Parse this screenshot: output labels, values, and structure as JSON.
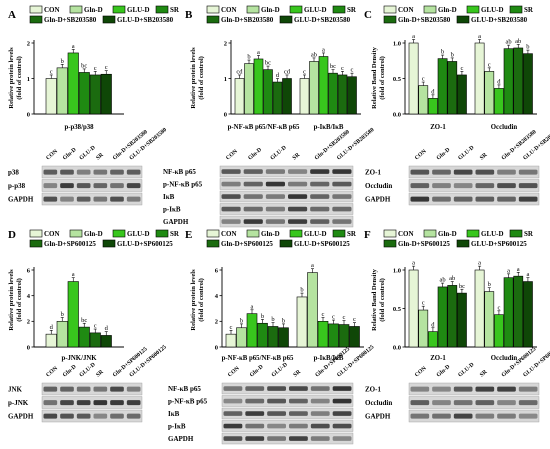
{
  "colors": {
    "CON": "#e6f5d6",
    "Gln-D": "#b5e3a0",
    "GLU-D": "#38c61d",
    "SR": "#1f8a12",
    "Gln-D+SR": "#1b6b0f",
    "GLU-D+SR": "#0f4707",
    "blot_bg": "#d7d7d7",
    "band": "#2a2a2a"
  },
  "chart_data": [
    {
      "panel": "A",
      "type": "bar",
      "legend": [
        "CON",
        "Gln-D",
        "GLU-D",
        "SR",
        "Gln-D+SB203580",
        "GLU-D+SB203580"
      ],
      "ylabel": "Relative protein levels (fold of control)",
      "ylim": [
        0,
        2
      ],
      "yticks": [
        "0",
        "1",
        "2"
      ],
      "categories": [
        "p-p38/p38"
      ],
      "groups": [
        {
          "values": [
            1.0,
            1.3,
            1.72,
            1.17,
            1.1,
            1.12
          ],
          "letters": [
            "c",
            "b",
            "a",
            "bc",
            "c",
            "c"
          ]
        }
      ],
      "blot_lanes": [
        "CON",
        "Gln-D",
        "GLU-D",
        "SR",
        "Gln-D+SB203580",
        "GLU-D+SB203580"
      ],
      "blot_rows": [
        "p38",
        "p-p38",
        "GAPDH"
      ]
    },
    {
      "panel": "B",
      "type": "bar",
      "legend": [
        "CON",
        "Gln-D",
        "GLU-D",
        "SR",
        "Gln-D+SB203580",
        "GLU-D+SB203580"
      ],
      "ylabel": "Relative protein levels (fold of control)",
      "ylim": [
        0,
        2
      ],
      "yticks": [
        "0",
        "1",
        "2"
      ],
      "categories": [
        "p-NF-κB p65/NF-κB p65",
        "p-IκB/IκB"
      ],
      "groups": [
        {
          "values": [
            1.0,
            1.42,
            1.55,
            1.25,
            0.9,
            1.0
          ],
          "letters": [
            "cd",
            "b",
            "a",
            "bc",
            "d",
            "cd"
          ]
        },
        {
          "values": [
            1.0,
            1.48,
            1.62,
            1.15,
            1.1,
            1.05
          ],
          "letters": [
            "c",
            "ab",
            "a",
            "bc",
            "c",
            "c"
          ]
        }
      ],
      "blot_lanes": [
        "CON",
        "Gln-D",
        "GLU-D",
        "SR",
        "Gln-D+SB203580",
        "GLU-D+SB203580"
      ],
      "blot_rows": [
        "NF-κB p65",
        "p-NF-κB p65",
        "IκB",
        "p-IκB",
        "GAPDH"
      ]
    },
    {
      "panel": "C",
      "type": "bar",
      "legend": [
        "CON",
        "Gln-D",
        "GLU-D",
        "SR",
        "Gln-D+SB203580",
        "GLU-D+SB203580"
      ],
      "ylabel": "Relative Band Density (fold of control)",
      "ylim": [
        0,
        1.0
      ],
      "yticks": [
        "0.0",
        "0.5",
        "1.0"
      ],
      "categories": [
        "ZO-1",
        "Occludin"
      ],
      "groups": [
        {
          "values": [
            1.0,
            0.4,
            0.22,
            0.78,
            0.74,
            0.55
          ],
          "letters": [
            "a",
            "c",
            "d",
            "b",
            "b",
            "c"
          ]
        },
        {
          "values": [
            1.0,
            0.6,
            0.36,
            0.92,
            0.93,
            0.85
          ],
          "letters": [
            "a",
            "c",
            "d",
            "ab",
            "ab",
            "b"
          ]
        }
      ],
      "blot_lanes": [
        "CON",
        "Gln-D",
        "GLU-D",
        "SR",
        "Gln-D+SB203580",
        "GLU-D+SB203580"
      ],
      "blot_rows": [
        "ZO-1",
        "Occludin",
        "GAPDH"
      ]
    },
    {
      "panel": "D",
      "type": "bar",
      "legend": [
        "CON",
        "Gln-D",
        "GLU-D",
        "SR",
        "Gln-D+SP600125",
        "GLU-D+SP600125"
      ],
      "ylabel": "Relative protein levels (fold of control)",
      "ylim": [
        0,
        6
      ],
      "yticks": [
        "0",
        "2",
        "4",
        "6"
      ],
      "categories": [
        "p-JNK/JNK"
      ],
      "groups": [
        {
          "values": [
            1.0,
            2.0,
            5.1,
            1.55,
            1.1,
            0.9
          ],
          "letters": [
            "d",
            "b",
            "a",
            "bc",
            "c",
            "d"
          ]
        }
      ],
      "blot_lanes": [
        "CON",
        "Gln-D",
        "GLU-D",
        "SR",
        "Gln-D+SP600125",
        "GLU-D+SP600125"
      ],
      "blot_rows": [
        "JNK",
        "p-JNK",
        "GAPDH"
      ]
    },
    {
      "panel": "E",
      "type": "bar",
      "legend": [
        "CON",
        "Gln-D",
        "GLU-D",
        "SR",
        "Gln-D+SP600125",
        "GLU-D+SP600125"
      ],
      "ylabel": "Relative protein levels (fold of control)",
      "ylim": [
        0,
        6
      ],
      "yticks": [
        "0",
        "2",
        "4",
        "6"
      ],
      "categories": [
        "p-NF-κB p65/NF-κB p65",
        "p-IκB/IκB"
      ],
      "groups": [
        {
          "values": [
            1.0,
            1.5,
            2.6,
            1.85,
            1.6,
            1.5
          ],
          "letters": [
            "c",
            "b",
            "a",
            "b",
            "b",
            "b"
          ]
        },
        {
          "values": [
            3.9,
            5.8,
            2.0,
            1.8,
            1.75,
            1.6
          ],
          "letters": [
            "b",
            "a",
            "c",
            "c",
            "c",
            "c"
          ]
        }
      ],
      "blot_lanes": [
        "CON",
        "Gln-D",
        "GLU-D",
        "SR",
        "Gln-D+SP600125",
        "GLU-D+SP600125"
      ],
      "blot_rows": [
        "NF-κB p65",
        "p-NF-κB p65",
        "IκB",
        "p-IκB",
        "GAPDH"
      ]
    },
    {
      "panel": "F",
      "type": "bar",
      "legend": [
        "CON",
        "Gln-D",
        "GLU-D",
        "SR",
        "Gln-D+SP600125",
        "GLU-D+SP600125"
      ],
      "ylabel": "Relative Band Density (fold of control)",
      "ylim": [
        0,
        1.0
      ],
      "yticks": [
        "0.0",
        "0.5",
        "1.0"
      ],
      "categories": [
        "ZO-1",
        "Occludin"
      ],
      "groups": [
        {
          "values": [
            1.0,
            0.48,
            0.2,
            0.78,
            0.8,
            0.7
          ],
          "letters": [
            "a",
            "c",
            "d",
            "ab",
            "ab",
            "bc"
          ]
        },
        {
          "values": [
            1.0,
            0.72,
            0.42,
            0.9,
            0.92,
            0.85
          ],
          "letters": [
            "a",
            "b",
            "c",
            "a",
            "a",
            "a"
          ]
        }
      ],
      "blot_lanes": [
        "CON",
        "Gln-D",
        "GLU-D",
        "SR",
        "Gln-D+SP600125",
        "GLU-D+SP600125"
      ],
      "blot_rows": [
        "ZO-1",
        "Occludin",
        "GAPDH"
      ]
    }
  ]
}
